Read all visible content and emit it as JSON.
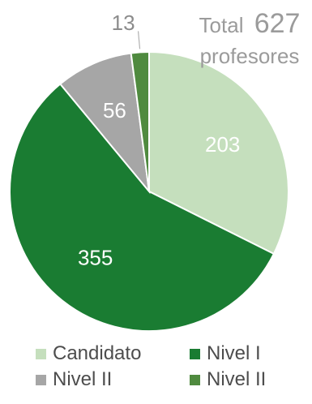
{
  "chart_data": {
    "type": "pie",
    "slices": [
      {
        "label": "Candidato",
        "value": 203,
        "color": "#c5dfbd"
      },
      {
        "label": "Nivel I",
        "value": 355,
        "color": "#1a7c32"
      },
      {
        "label": "Nivel II",
        "value": 56,
        "color": "#a6a6a6"
      },
      {
        "label": "Nivel II",
        "value": 13,
        "color": "#4f8a3f"
      }
    ],
    "total_label": "Total",
    "total_value": "627",
    "total_unit": "profesores",
    "legend": [
      {
        "label": "Candidato",
        "color": "#c5dfbd"
      },
      {
        "label": "Nivel I",
        "color": "#1a7c32"
      },
      {
        "label": "Nivel II",
        "color": "#a6a6a6"
      },
      {
        "label": "Nivel II",
        "color": "#4f8a3f"
      }
    ],
    "legend_position": "bottom"
  }
}
